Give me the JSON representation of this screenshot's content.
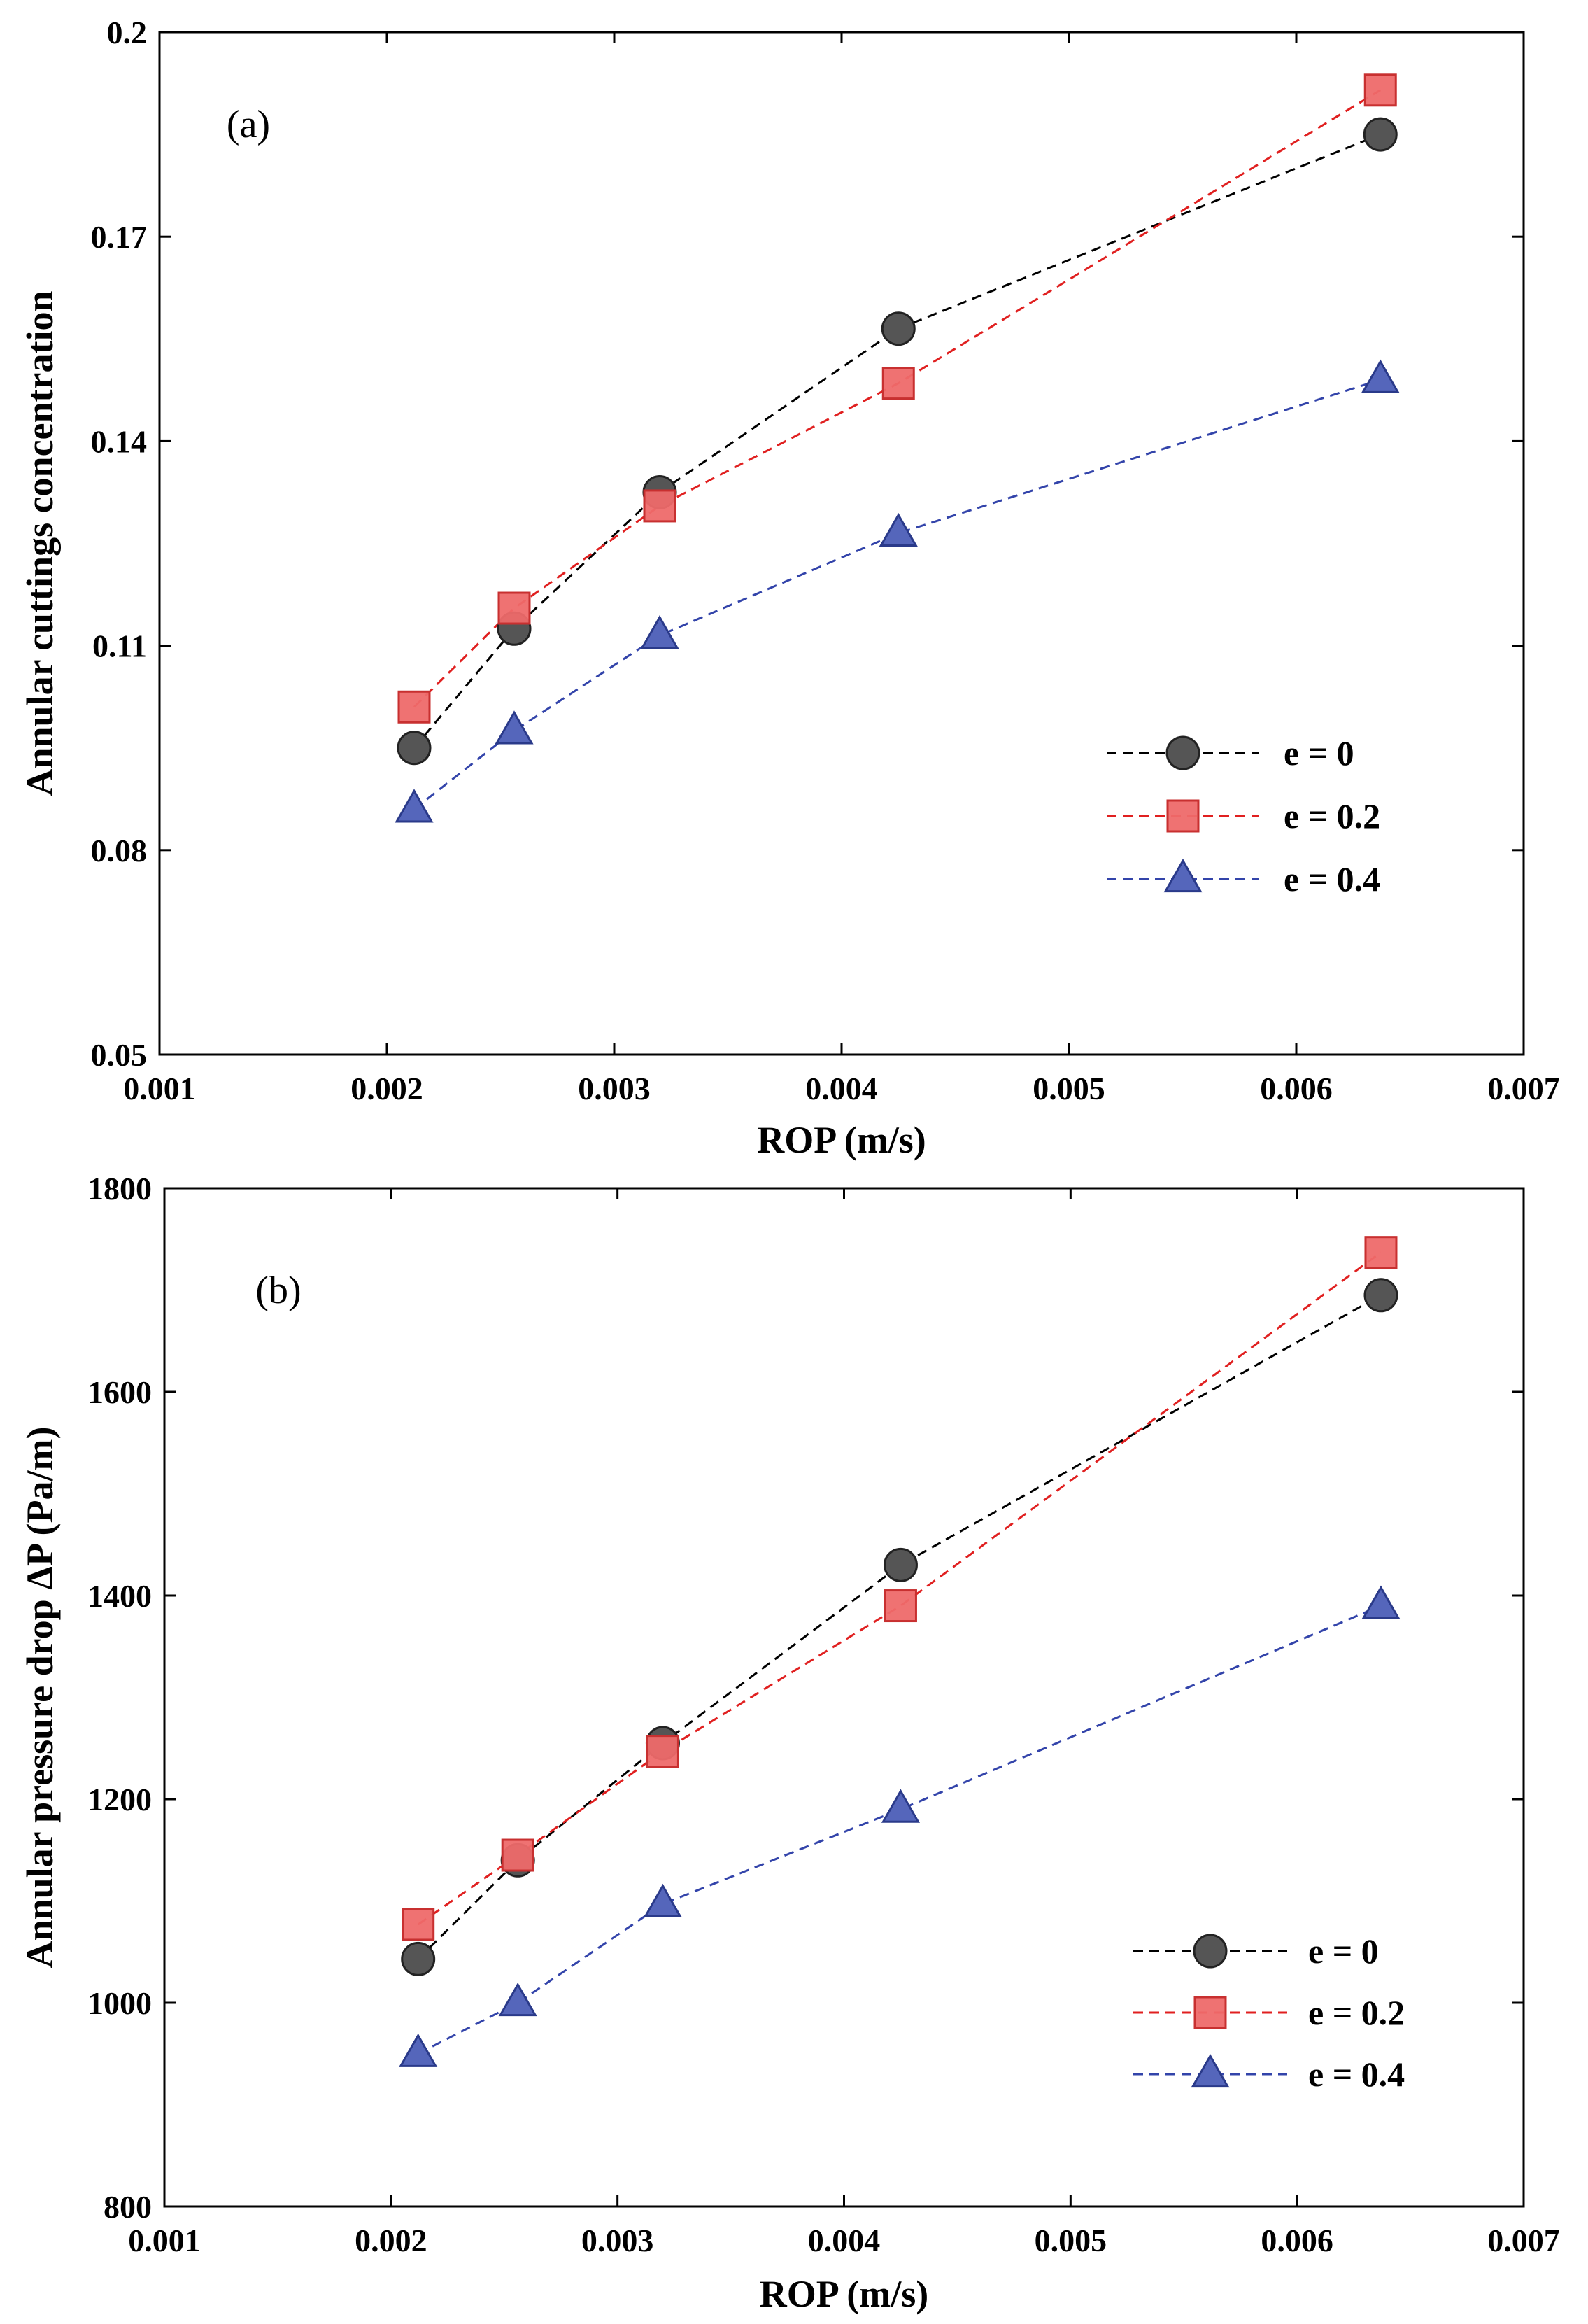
{
  "chart_data": [
    {
      "type": "line",
      "panel_label": "(a)",
      "xlabel": "ROP (m/s)",
      "ylabel": "Annular cuttings concentration",
      "xlim": [
        0.001,
        0.007
      ],
      "ylim": [
        0.05,
        0.2
      ],
      "xticks": [
        0.001,
        0.002,
        0.003,
        0.004,
        0.005,
        0.006,
        0.007
      ],
      "xtick_labels": [
        "0.001",
        "0.002",
        "0.003",
        "0.004",
        "0.005",
        "0.006",
        "0.007"
      ],
      "yticks": [
        0.05,
        0.08,
        0.11,
        0.14,
        0.17,
        0.2
      ],
      "ytick_labels": [
        "0.05",
        "0.08",
        "0.11",
        "0.14",
        "0.17",
        "0.2"
      ],
      "legend_position": "right",
      "series": [
        {
          "name": "e = 0",
          "marker": "circle",
          "color": "#555555",
          "line_color": "#000000",
          "x": [
            0.00212,
            0.00256,
            0.0032,
            0.00425,
            0.00637
          ],
          "y": [
            0.095,
            0.1125,
            0.1325,
            0.1565,
            0.185
          ]
        },
        {
          "name": "e = 0.2",
          "marker": "square",
          "color": "#ee6a6a",
          "line_color": "#e02020",
          "x": [
            0.00212,
            0.00256,
            0.0032,
            0.00425,
            0.00637
          ],
          "y": [
            0.101,
            0.1155,
            0.1305,
            0.1485,
            0.1915
          ]
        },
        {
          "name": "e = 0.4",
          "marker": "triangle",
          "color": "#5566bb",
          "line_color": "#3344aa",
          "x": [
            0.00212,
            0.00256,
            0.0032,
            0.00425,
            0.00637
          ],
          "y": [
            0.086,
            0.0975,
            0.1115,
            0.1265,
            0.149
          ]
        }
      ]
    },
    {
      "type": "line",
      "panel_label": "(b)",
      "xlabel": "ROP (m/s)",
      "ylabel": "Annular pressure drop ΔP (Pa/m)",
      "xlim": [
        0.001,
        0.007
      ],
      "ylim": [
        800,
        1800
      ],
      "xticks": [
        0.001,
        0.002,
        0.003,
        0.004,
        0.005,
        0.006,
        0.007
      ],
      "xtick_labels": [
        "0.001",
        "0.002",
        "0.003",
        "0.004",
        "0.005",
        "0.006",
        "0.007"
      ],
      "yticks": [
        800,
        1000,
        1200,
        1400,
        1600,
        1800
      ],
      "ytick_labels": [
        "800",
        "1000",
        "1200",
        "1400",
        "1600",
        "1800"
      ],
      "legend_position": "right",
      "series": [
        {
          "name": "e = 0",
          "marker": "circle",
          "color": "#555555",
          "line_color": "#000000",
          "x": [
            0.00212,
            0.00256,
            0.0032,
            0.00425,
            0.00637
          ],
          "y": [
            1043,
            1140,
            1255,
            1430,
            1695
          ]
        },
        {
          "name": "e = 0.2",
          "marker": "square",
          "color": "#ee6a6a",
          "line_color": "#e02020",
          "x": [
            0.00212,
            0.00256,
            0.0032,
            0.00425,
            0.00637
          ],
          "y": [
            1077,
            1145,
            1247,
            1390,
            1737
          ]
        },
        {
          "name": "e = 0.4",
          "marker": "triangle",
          "color": "#5566bb",
          "line_color": "#3344aa",
          "x": [
            0.00212,
            0.00256,
            0.0032,
            0.00425,
            0.00637
          ],
          "y": [
            950,
            1000,
            1097,
            1190,
            1390
          ]
        }
      ]
    }
  ]
}
